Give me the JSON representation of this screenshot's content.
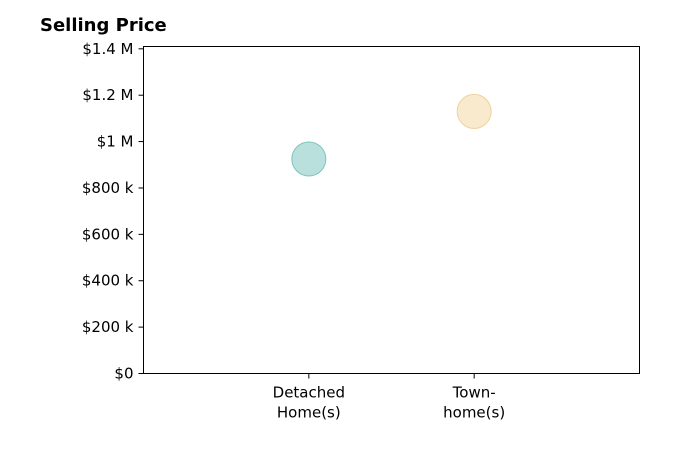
{
  "chart_data": {
    "type": "scatter",
    "title": "Selling Price",
    "xlabel": "",
    "ylabel": "",
    "categories": [
      [
        "Detached",
        "Home(s)"
      ],
      [
        "Town-",
        "home(s)"
      ]
    ],
    "values": [
      925000,
      1130000
    ],
    "point_colors": [
      "#a8d8d4",
      "#f7e4c0"
    ],
    "point_stroke_colors": [
      "#7cc4be",
      "#f0d29c"
    ],
    "ylim": [
      0,
      1410000
    ],
    "yticks": [
      0,
      200000,
      400000,
      600000,
      800000,
      1000000,
      1200000,
      1400000
    ],
    "ytick_labels": [
      "$0",
      "$200 k",
      "$400 k",
      "$600 k",
      "$800 k",
      "$1 M",
      "$1.2 M",
      "$1.4 M"
    ],
    "xlim": [
      0,
      3
    ],
    "grid": false,
    "legend": "none"
  }
}
